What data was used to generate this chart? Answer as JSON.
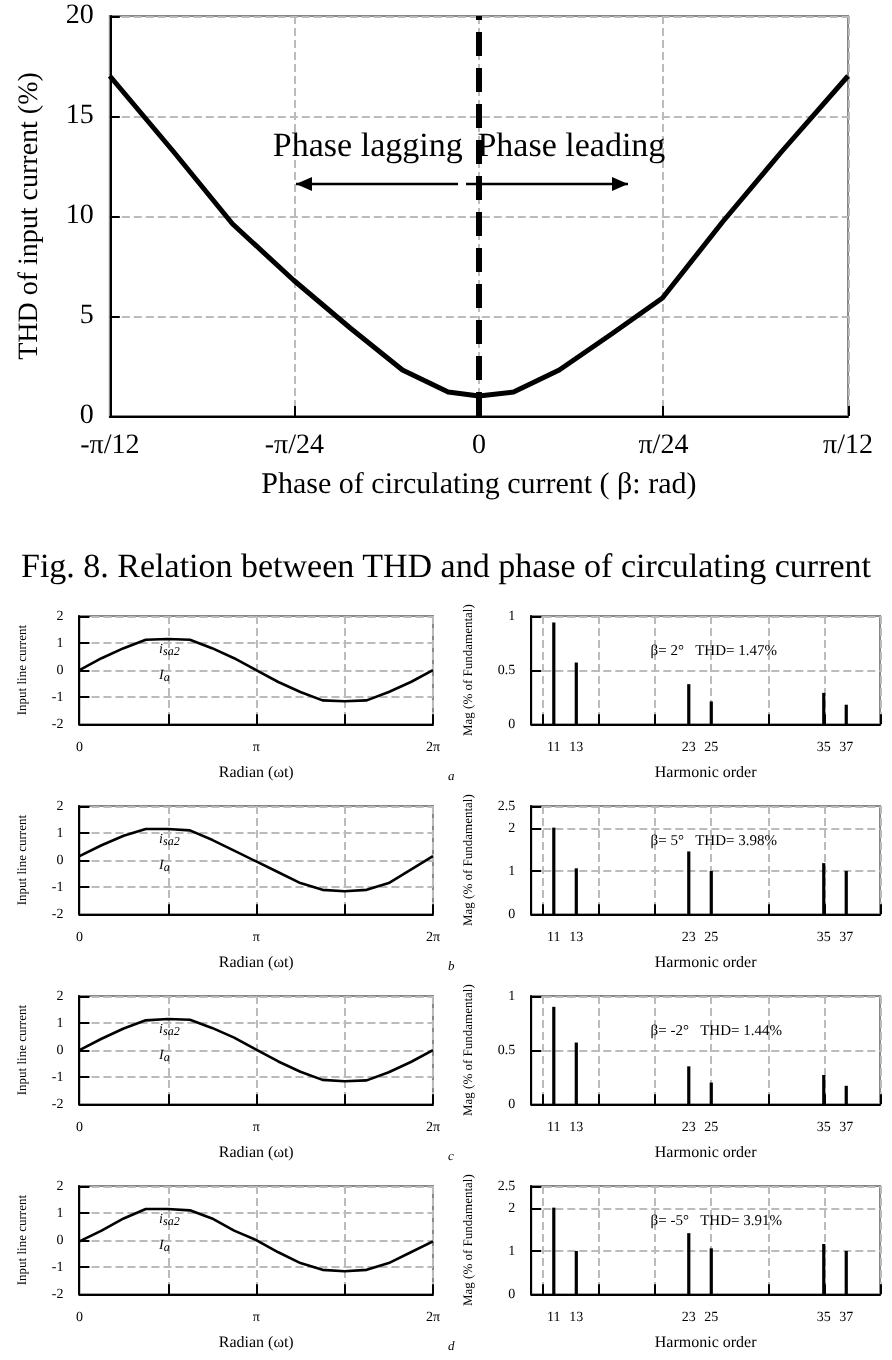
{
  "chart_data": [
    {
      "type": "line",
      "title": "Fig. 8. Relation between THD and phase of circulating current",
      "xlabel": "Phase of circulating current ( β: rad)",
      "ylabel": "THD of input current (%)",
      "color": "#000000",
      "x": [
        -0.2618,
        -0.2164,
        -0.1747,
        -0.1316,
        -0.0913,
        -0.0542,
        -0.0218,
        0,
        0.0246,
        0.057,
        0.0941,
        0.1302,
        0.1728,
        0.2145,
        0.2618
      ],
      "values": [
        17,
        13.2,
        9.6,
        6.8,
        4.4,
        2.3,
        1.2,
        1,
        1.2,
        2.3,
        4.1,
        5.9,
        9.7,
        13.2,
        17
      ],
      "xlim": [
        -0.2618,
        0.2618
      ],
      "xticks": [
        {
          "value": -0.2618,
          "label": "-π/12"
        },
        {
          "value": -0.1309,
          "label": "-π/24"
        },
        {
          "value": 0,
          "label": "0"
        },
        {
          "value": 0.1309,
          "label": "π/24"
        },
        {
          "value": 0.2618,
          "label": "π/12"
        }
      ],
      "ylim": [
        0,
        20
      ],
      "yticks": [
        0,
        5,
        10,
        15,
        20
      ],
      "grid": true,
      "ref_lines": [
        {
          "axis": "x",
          "value": 0,
          "line_style": "dashed",
          "color": "#000000"
        }
      ],
      "annotations": [
        "Phase lagging",
        "Phase leading"
      ]
    },
    {
      "type": "line",
      "xlabel": "Radian (ωt)",
      "ylabel": "Input line current",
      "color": "#000000",
      "x": [
        0,
        0.3927,
        0.7854,
        1.1781,
        1.5708,
        1.9635,
        2.3562,
        2.7489,
        3.1416,
        3.5343,
        3.927,
        4.3197,
        4.7124,
        5.1051,
        5.4978,
        5.8905,
        6.2832
      ],
      "values": [
        0,
        0.44,
        0.81,
        1.12,
        1.15,
        1.12,
        0.81,
        0.44,
        0,
        -0.44,
        -0.81,
        -1.12,
        -1.15,
        -1.12,
        -0.81,
        -0.44,
        0
      ],
      "xlim": [
        0,
        6.2832
      ],
      "xticks": [
        {
          "value": 0,
          "label": "0"
        },
        {
          "value": 1.5708,
          "label": null
        },
        {
          "value": 3.1416,
          "label": "π"
        },
        {
          "value": 4.7124,
          "label": null
        },
        {
          "value": 6.2832,
          "label": "2π"
        }
      ],
      "ylim": [
        -2,
        2
      ],
      "yticks": [
        -2,
        -1,
        0,
        1,
        2
      ],
      "grid": true,
      "annotations": [
        "i$_{sa2}$",
        "I$_{a}$"
      ]
    },
    {
      "type": "bar",
      "xlabel": "Harmonic order",
      "ylabel": "Mag (% of Fundamental)",
      "color": "#000000",
      "x": [
        11,
        13,
        23,
        25,
        35,
        37
      ],
      "values": [
        0.94,
        0.57,
        0.37,
        0.21,
        0.29,
        0.18
      ],
      "xlim": [
        9,
        40
      ],
      "xticks": [
        11,
        13,
        23,
        25,
        35,
        37
      ],
      "ylim": [
        0,
        1
      ],
      "yticks": [
        0,
        0.5,
        1
      ],
      "grid": true,
      "annotations": [
        "β= 2°   THD= 1.47%",
        "a"
      ]
    },
    {
      "type": "line",
      "xlabel": "Radian (ωt)",
      "ylabel": "Input line current",
      "color": "#000000",
      "x": [
        0,
        0.3927,
        0.7854,
        1.1781,
        1.5708,
        1.9635,
        2.3562,
        2.7489,
        3.1416,
        3.5343,
        3.927,
        4.3197,
        4.7124,
        5.1051,
        5.4978,
        5.8905,
        6.2832
      ],
      "values": [
        0.15,
        0.55,
        0.9,
        1.15,
        1.15,
        1.1,
        0.75,
        0.35,
        -0.05,
        -0.45,
        -0.85,
        -1.1,
        -1.15,
        -1.1,
        -0.85,
        -0.35,
        0.15
      ],
      "xlim": [
        0,
        6.2832
      ],
      "xticks": [
        {
          "value": 0,
          "label": "0"
        },
        {
          "value": 1.5708,
          "label": null
        },
        {
          "value": 3.1416,
          "label": "π"
        },
        {
          "value": 4.7124,
          "label": null
        },
        {
          "value": 6.2832,
          "label": "2π"
        }
      ],
      "ylim": [
        -2,
        2
      ],
      "yticks": [
        -2,
        -1,
        0,
        1,
        2
      ],
      "grid": true,
      "annotations": [
        "i$_{sa2}$",
        "I$_{a}$"
      ]
    },
    {
      "type": "bar",
      "xlabel": "Harmonic order",
      "ylabel": "Mag (% of Fundamental)",
      "color": "#000000",
      "x": [
        11,
        13,
        23,
        25,
        35,
        37
      ],
      "values": [
        2,
        1.06,
        1.45,
        1,
        1.18,
        1
      ],
      "xlim": [
        9,
        40
      ],
      "xticks": [
        11,
        13,
        23,
        25,
        35,
        37
      ],
      "ylim": [
        0,
        2.5
      ],
      "yticks": [
        0,
        1,
        2,
        2.5
      ],
      "grid": true,
      "annotations": [
        "β= 5°   THD= 3.98%",
        "b"
      ]
    },
    {
      "type": "line",
      "xlabel": "Radian (ωt)",
      "ylabel": "Input line current",
      "color": "#000000",
      "x": [
        0,
        0.3927,
        0.7854,
        1.1781,
        1.5708,
        1.9635,
        2.3562,
        2.7489,
        3.1416,
        3.5343,
        3.927,
        4.3197,
        4.7124,
        5.1051,
        5.4978,
        5.8905,
        6.2832
      ],
      "values": [
        0,
        0.42,
        0.8,
        1.1,
        1.15,
        1.12,
        0.82,
        0.46,
        0.02,
        -0.42,
        -0.8,
        -1.1,
        -1.15,
        -1.12,
        -0.82,
        -0.44,
        0
      ],
      "xlim": [
        0,
        6.2832
      ],
      "xticks": [
        {
          "value": 0,
          "label": "0"
        },
        {
          "value": 1.5708,
          "label": null
        },
        {
          "value": 3.1416,
          "label": "π"
        },
        {
          "value": 4.7124,
          "label": null
        },
        {
          "value": 6.2832,
          "label": "2π"
        }
      ],
      "ylim": [
        -2,
        2
      ],
      "yticks": [
        -2,
        -1,
        0,
        1,
        2
      ],
      "grid": true,
      "annotations": [
        "i$_{sa2}$",
        "I$_{a}$"
      ]
    },
    {
      "type": "bar",
      "xlabel": "Harmonic order",
      "ylabel": "Mag (% of Fundamental)",
      "color": "#000000",
      "x": [
        11,
        13,
        23,
        25,
        35,
        37
      ],
      "values": [
        0.9,
        0.57,
        0.35,
        0.2,
        0.27,
        0.17
      ],
      "xlim": [
        9,
        40
      ],
      "xticks": [
        11,
        13,
        23,
        25,
        35,
        37
      ],
      "ylim": [
        0,
        1
      ],
      "yticks": [
        0,
        0.5,
        1
      ],
      "grid": true,
      "annotations": [
        "β= -2°   THD= 1.44%",
        "c"
      ]
    },
    {
      "type": "line",
      "xlabel": "Radian (ωt)",
      "ylabel": "Input line current",
      "color": "#000000",
      "x": [
        0,
        0.3927,
        0.7854,
        1.1781,
        1.5708,
        1.9635,
        2.3562,
        2.7489,
        3.1416,
        3.5343,
        3.927,
        4.3197,
        4.7124,
        5.1051,
        5.4978,
        5.8905,
        6.2832
      ],
      "values": [
        -0.05,
        0.35,
        0.8,
        1.15,
        1.15,
        1.1,
        0.8,
        0.35,
        0,
        -0.45,
        -0.85,
        -1.1,
        -1.15,
        -1.1,
        -0.85,
        -0.45,
        -0.05
      ],
      "xlim": [
        0,
        6.2832
      ],
      "xticks": [
        {
          "value": 0,
          "label": "0"
        },
        {
          "value": 1.5708,
          "label": null
        },
        {
          "value": 3.1416,
          "label": "π"
        },
        {
          "value": 4.7124,
          "label": null
        },
        {
          "value": 6.2832,
          "label": "2π"
        }
      ],
      "ylim": [
        -2,
        2
      ],
      "yticks": [
        -2,
        -1,
        0,
        1,
        2
      ],
      "grid": true,
      "annotations": [
        "i$_{sa2}$",
        "I$_{a}$"
      ]
    },
    {
      "type": "bar",
      "xlabel": "Harmonic order",
      "ylabel": "Mag (% of Fundamental)",
      "color": "#000000",
      "x": [
        11,
        13,
        23,
        25,
        35,
        37
      ],
      "values": [
        2,
        1,
        1.41,
        1.06,
        1.16,
        1
      ],
      "xlim": [
        9,
        40
      ],
      "xticks": [
        11,
        13,
        23,
        25,
        35,
        37
      ],
      "ylim": [
        0,
        2.5
      ],
      "yticks": [
        0,
        1,
        2,
        2.5
      ],
      "grid": true,
      "annotations": [
        "β= -5°   THD= 3.91%",
        "d"
      ]
    }
  ]
}
